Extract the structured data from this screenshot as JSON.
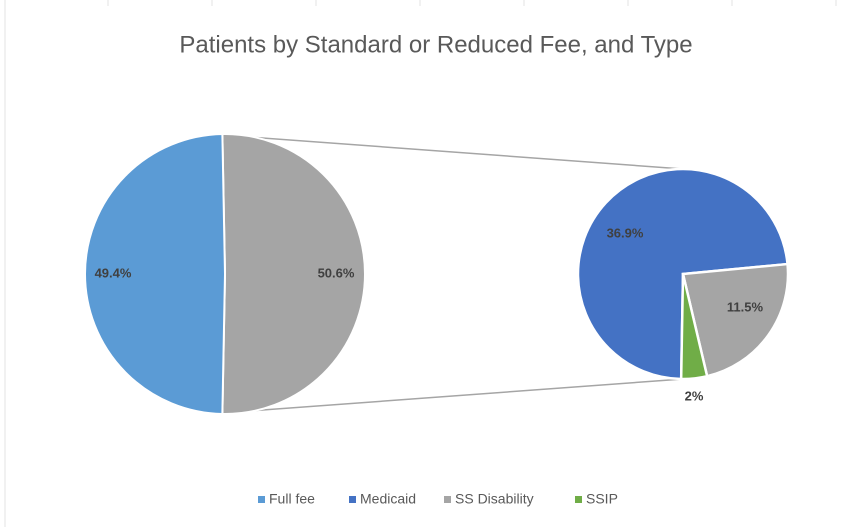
{
  "chart_data": {
    "type": "pie-of-pie",
    "title": "Patients by  Standard or Reduced Fee, and Type",
    "categories": [
      "Full fee",
      "Medicaid",
      "SS Disability",
      "SSIP"
    ],
    "values": [
      49.4,
      36.9,
      11.5,
      2
    ],
    "value_labels": [
      "49.4%",
      "36.9%",
      "11.5%",
      "2%"
    ],
    "colors": [
      "#5b9bd5",
      "#4472c4",
      "#a5a5a5",
      "#70ad47"
    ],
    "other_value": 50.6,
    "other_label": "50.6%",
    "other_color": "#a5a5a5",
    "legend": "bottom"
  }
}
